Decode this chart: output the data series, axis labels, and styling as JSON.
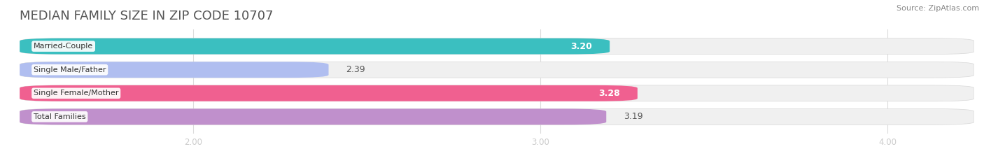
{
  "title": "MEDIAN FAMILY SIZE IN ZIP CODE 10707",
  "source": "Source: ZipAtlas.com",
  "categories": [
    "Married-Couple",
    "Single Male/Father",
    "Single Female/Mother",
    "Total Families"
  ],
  "values": [
    3.2,
    2.39,
    3.28,
    3.19
  ],
  "bar_colors": [
    "#3bbfc0",
    "#b0bef0",
    "#f06090",
    "#c090cc"
  ],
  "value_white": [
    true,
    false,
    true,
    false
  ],
  "background_color": "#ffffff",
  "bar_bg_color": "#f0f0f0",
  "xlim": [
    1.5,
    4.25
  ],
  "xticks": [
    2.0,
    3.0,
    4.0
  ],
  "xtick_labels": [
    "2.00",
    "3.00",
    "4.00"
  ],
  "title_fontsize": 13,
  "bar_label_fontsize": 9,
  "category_fontsize": 8,
  "source_fontsize": 8
}
